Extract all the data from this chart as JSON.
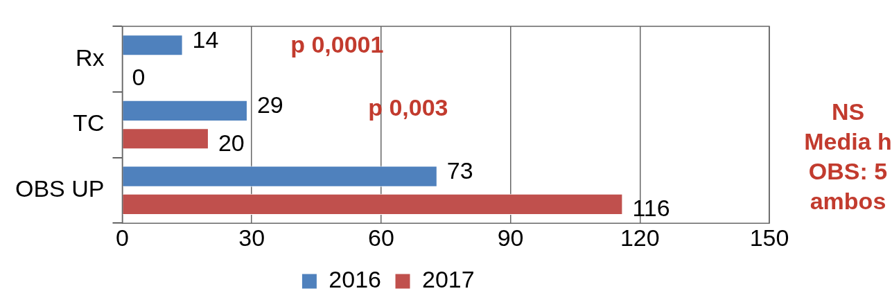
{
  "chart_data": {
    "type": "bar",
    "orientation": "horizontal",
    "categories": [
      "Rx",
      "TC",
      "OBS UP"
    ],
    "series": [
      {
        "name": "2016",
        "color": "#4f81bd",
        "values": [
          14,
          29,
          73
        ]
      },
      {
        "name": "2017",
        "color": "#c0504d",
        "values": [
          0,
          20,
          116
        ]
      }
    ],
    "xlim": [
      0,
      150
    ],
    "xticks": [
      0,
      30,
      60,
      90,
      120,
      150
    ],
    "grid": "x",
    "legend": "bottom",
    "data_labels": true,
    "annotations": [
      "p 0,0001",
      "p 0,003",
      "NS",
      "Media h",
      "OBS: 5",
      "ambos"
    ]
  }
}
